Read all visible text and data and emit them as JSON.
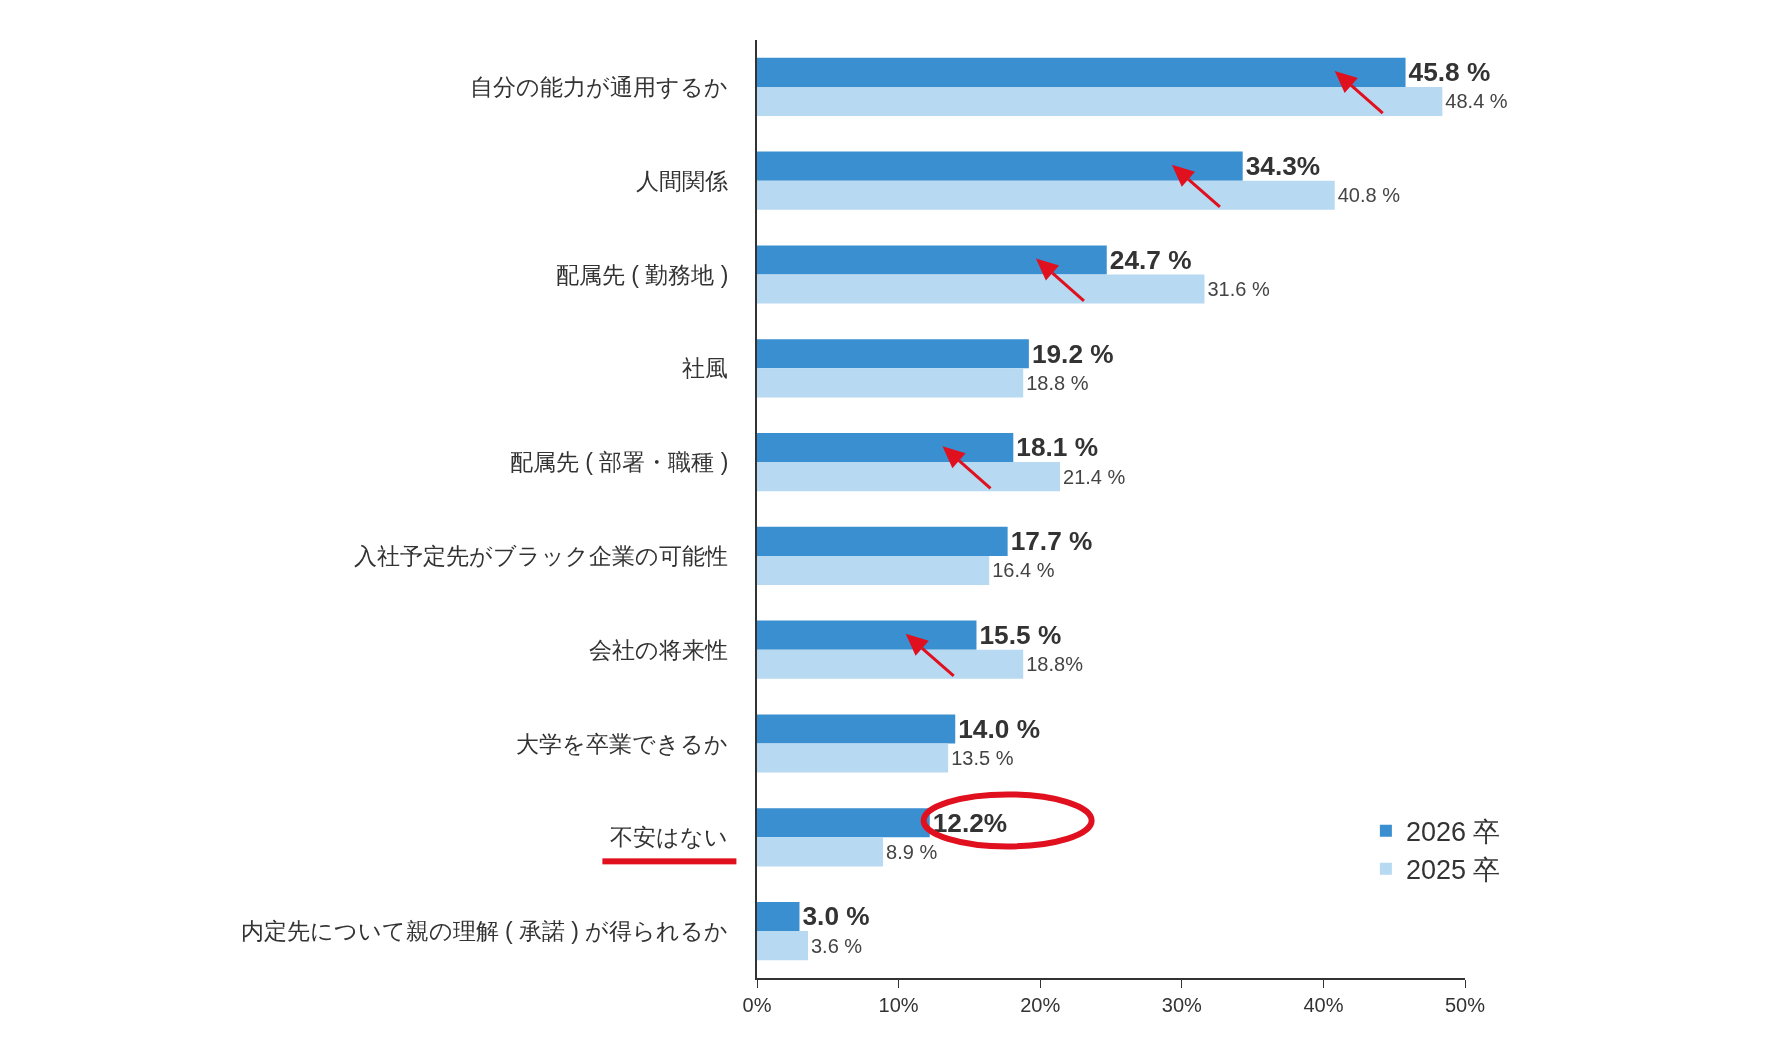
{
  "chart_data": {
    "type": "bar",
    "orientation": "horizontal",
    "categories": [
      "自分の能力が通用するか",
      "人間関係",
      "配属先 ( 勤務地 )",
      "社風",
      "配属先 ( 部署・職種 )",
      "入社予定先がブラック企業の可能性",
      "会社の将来性",
      "大学を卒業できるか",
      "不安はない",
      "内定先について親の理解 ( 承諾 ) が得られるか"
    ],
    "series": [
      {
        "name": "2026 卒",
        "color": "#3a8fd0",
        "values": [
          45.8,
          34.3,
          24.7,
          19.2,
          18.1,
          17.7,
          15.5,
          14.0,
          12.2,
          3.0
        ],
        "value_labels": [
          "45.8 %",
          "34.3%",
          "24.7 %",
          "19.2 %",
          "18.1 %",
          "17.7 %",
          "15.5 %",
          "14.0 %",
          "12.2%",
          "3.0 %"
        ]
      },
      {
        "name": "2025 卒",
        "color": "#b7d9f2",
        "values": [
          48.4,
          40.8,
          31.6,
          18.8,
          21.4,
          16.4,
          18.8,
          13.5,
          8.9,
          3.6
        ],
        "value_labels": [
          "48.4 %",
          "40.8 %",
          "31.6 %",
          "18.8 %",
          "21.4 %",
          "16.4 %",
          "18.8%",
          "13.5 %",
          "8.9 %",
          "3.6 %"
        ]
      }
    ],
    "xlim": [
      0,
      50
    ],
    "xticks": [
      {
        "value": 0,
        "label": "0%"
      },
      {
        "value": 10,
        "label": "10%"
      },
      {
        "value": 20,
        "label": "20%"
      },
      {
        "value": 30,
        "label": "30%"
      },
      {
        "value": 40,
        "label": "40%"
      },
      {
        "value": 50,
        "label": "50%"
      }
    ],
    "grid": false,
    "legend": "bottom right"
  }
}
